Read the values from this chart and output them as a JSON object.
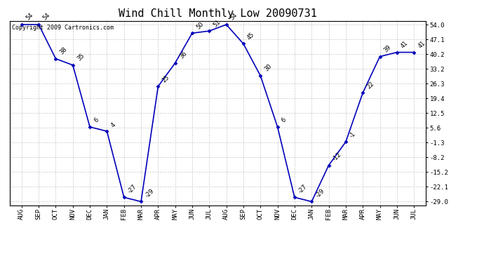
{
  "title": "Wind Chill Monthly Low 20090731",
  "copyright": "Copyright 2009 Cartronics.com",
  "months": [
    "AUG",
    "SEP",
    "OCT",
    "NOV",
    "DEC",
    "JAN",
    "FEB",
    "MAR",
    "APR",
    "MAY",
    "JUN",
    "JUL",
    "AUG",
    "SEP",
    "OCT",
    "NOV",
    "DEC",
    "JAN",
    "FEB",
    "MAR",
    "APR",
    "MAY",
    "JUN",
    "JUL"
  ],
  "values": [
    54,
    54,
    38,
    35,
    6,
    4,
    -27,
    -29,
    25,
    36,
    50,
    51,
    54,
    45,
    30,
    6,
    -27,
    -29,
    -12,
    -1,
    22,
    39,
    41,
    41
  ],
  "ylim_min": -29.0,
  "ylim_max": 54.0,
  "yticks": [
    54.0,
    47.1,
    40.2,
    33.2,
    26.3,
    19.4,
    12.5,
    5.6,
    -1.3,
    -8.2,
    -15.2,
    -22.1,
    -29.0
  ],
  "line_color": "#0000bb",
  "marker_color": "#0000bb",
  "bg_color": "#ffffff",
  "grid_color": "#bbbbbb",
  "title_fontsize": 11,
  "label_fontsize": 6.5,
  "annotation_fontsize": 6,
  "copyright_fontsize": 6
}
